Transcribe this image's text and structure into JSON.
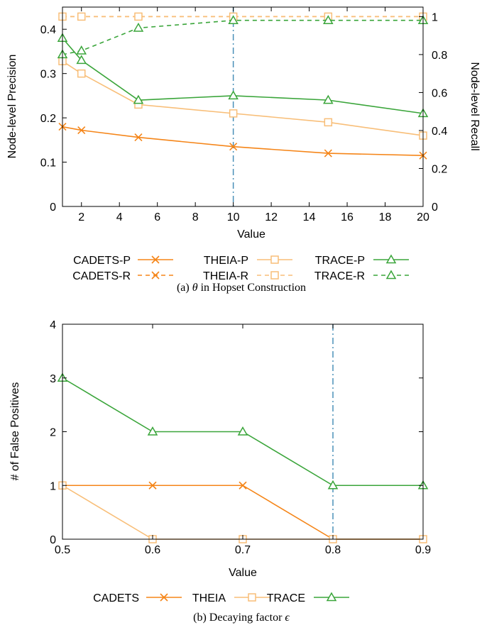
{
  "colors": {
    "cadets": "#f58518",
    "theia": "#f8be78",
    "trace": "#3aa53a",
    "marker_line": "#4a90b8"
  },
  "chart_data": [
    {
      "type": "line",
      "caption_prefix": "(a) ",
      "caption_symbol": "θ",
      "caption_rest": " in Hopset Construction",
      "xlabel": "Value",
      "ylabel": "Node-level Precision",
      "y2label": "Node-level Recall",
      "xlim": [
        1,
        20
      ],
      "ylim": [
        0,
        0.45
      ],
      "y2lim": [
        0,
        1.05
      ],
      "xticks": [
        2,
        4,
        6,
        8,
        10,
        12,
        14,
        16,
        18,
        20
      ],
      "yticks": [
        0,
        0.1,
        0.2,
        0.3,
        0.4
      ],
      "y2ticks": [
        0,
        0.2,
        0.4,
        0.6,
        0.8,
        1
      ],
      "ytick_labels": [
        "0",
        "0.1",
        "0.2",
        "0.3",
        "0.4"
      ],
      "y2tick_labels": [
        "0",
        "0.2",
        "0.4",
        "0.6",
        "0.8",
        "1"
      ],
      "reference_x": 10,
      "x": [
        1,
        2,
        5,
        10,
        15,
        20
      ],
      "series": [
        {
          "name": "CADETS-P",
          "key": "cadets",
          "marker": "x",
          "dash": false,
          "axis": "left",
          "values": [
            0.18,
            0.172,
            0.156,
            0.135,
            0.12,
            0.115
          ]
        },
        {
          "name": "THEIA-P",
          "key": "theia",
          "marker": "square",
          "dash": false,
          "axis": "left",
          "values": [
            0.328,
            0.3,
            0.23,
            0.21,
            0.19,
            0.16
          ]
        },
        {
          "name": "TRACE-P",
          "key": "trace",
          "marker": "triangle",
          "dash": false,
          "axis": "left",
          "values": [
            0.38,
            0.33,
            0.24,
            0.25,
            0.24,
            0.21
          ]
        },
        {
          "name": "CADETS-R",
          "key": "cadets",
          "marker": "x",
          "dash": true,
          "axis": "right",
          "values": [
            1,
            1,
            1,
            1,
            1,
            1
          ]
        },
        {
          "name": "THEIA-R",
          "key": "theia",
          "marker": "square",
          "dash": true,
          "axis": "right",
          "values": [
            1,
            1,
            1,
            1,
            1,
            1
          ]
        },
        {
          "name": "TRACE-R",
          "key": "trace",
          "marker": "triangle",
          "dash": true,
          "axis": "right",
          "values": [
            0.8,
            0.82,
            0.94,
            0.98,
            0.98,
            0.98
          ]
        }
      ]
    },
    {
      "type": "line",
      "caption_prefix": "(b) Decaying factor ",
      "caption_symbol": "ϵ",
      "caption_rest": "",
      "xlabel": "Value",
      "ylabel": "# of False Positives",
      "xlim": [
        0.5,
        0.9
      ],
      "ylim": [
        0,
        4
      ],
      "xticks": [
        0.5,
        0.6,
        0.7,
        0.8,
        0.9
      ],
      "xtick_labels": [
        "0.5",
        "0.6",
        "0.7",
        "0.8",
        "0.9"
      ],
      "yticks": [
        0,
        1,
        2,
        3,
        4
      ],
      "ytick_labels": [
        "0",
        "1",
        "2",
        "3",
        "4"
      ],
      "reference_x": 0.8,
      "x": [
        0.5,
        0.6,
        0.7,
        0.8,
        0.9
      ],
      "series": [
        {
          "name": "CADETS",
          "key": "cadets",
          "marker": "x",
          "dash": false,
          "values": [
            1,
            1,
            1,
            0,
            0
          ]
        },
        {
          "name": "THEIA",
          "key": "theia",
          "marker": "square",
          "dash": false,
          "values": [
            1,
            0,
            0,
            0,
            0
          ]
        },
        {
          "name": "TRACE",
          "key": "trace",
          "marker": "triangle",
          "dash": false,
          "values": [
            3,
            2,
            2,
            1,
            1
          ]
        }
      ]
    }
  ]
}
